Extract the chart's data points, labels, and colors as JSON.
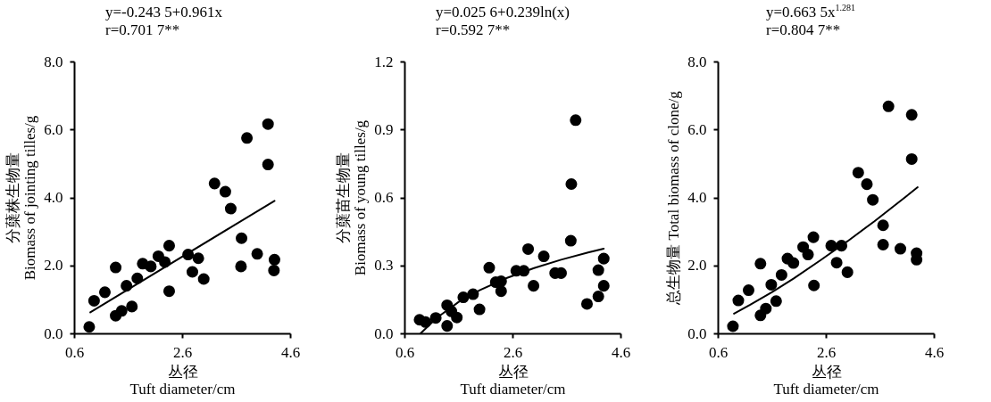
{
  "chart_data": [
    {
      "type": "scatter",
      "title": "y=-0.243 5+0.961x",
      "subtitle": "r=0.701 7**",
      "xlabel": "丛径\nTuft diameter/cm",
      "ylabel": "分蘖株生物量\nBiomass of jointing tilles/g",
      "xlim": [
        0.6,
        4.6
      ],
      "xticks": [
        0.6,
        2.6,
        4.6
      ],
      "ylim": [
        0,
        8
      ],
      "yticks": [
        {
          "value": 0,
          "label": "0.0"
        },
        {
          "value": 2,
          "label": "2.0"
        },
        {
          "value": 4,
          "label": "4.0"
        },
        {
          "value": 6,
          "label": "6.0"
        },
        {
          "value": 8,
          "label": "8.0"
        }
      ],
      "series": [
        {
          "type": "scatter",
          "marker": "circle",
          "color": "#000000",
          "x": [
            0.88,
            0.97,
            1.17,
            1.37,
            1.37,
            1.48,
            1.67,
            1.57,
            1.77,
            1.87,
            2.02,
            2.16,
            2.28,
            2.36,
            2.36,
            2.71,
            2.9,
            2.79,
            3.0,
            3.2,
            3.4,
            3.5,
            3.7,
            3.69,
            3.8,
            3.99,
            4.19,
            4.19,
            4.31,
            4.3
          ],
          "values": [
            0.19,
            0.96,
            1.21,
            1.94,
            0.52,
            0.66,
            0.79,
            1.4,
            1.62,
            2.05,
            1.97,
            2.27,
            2.1,
            2.58,
            1.24,
            2.32,
            2.21,
            1.81,
            1.6,
            4.41,
            4.17,
            3.67,
            2.8,
            1.97,
            5.75,
            2.34,
            6.16,
            4.97,
            2.17,
            1.85
          ]
        },
        {
          "type": "line",
          "color": "#000000",
          "x": [
            0.9,
            4.31
          ],
          "values": [
            0.62,
            3.9
          ]
        }
      ]
    },
    {
      "type": "scatter",
      "title": "y=0.025 6+0.239ln(x)",
      "subtitle": "r=0.592 7**",
      "xlabel": "丛径\nTuft diameter/cm",
      "ylabel": "分蘖苗生物量\nBiomass of young tilles/g",
      "xlim": [
        0.6,
        4.6
      ],
      "xticks": [
        0.6,
        2.6,
        4.6
      ],
      "ylim": [
        0,
        1.2
      ],
      "yticks": [
        {
          "value": 0,
          "label": "0.0"
        },
        0.3,
        0.6,
        0.9,
        1.2
      ],
      "series": [
        {
          "type": "scatter",
          "marker": "circle",
          "color": "#000000",
          "x": [
            0.88,
            0.99,
            1.18,
            1.39,
            1.39,
            1.47,
            1.57,
            1.69,
            1.87,
            1.99,
            2.17,
            2.29,
            2.39,
            2.39,
            2.67,
            2.81,
            2.89,
            2.99,
            3.18,
            3.39,
            3.5,
            3.68,
            3.69,
            3.77,
            3.98,
            4.19,
            4.19,
            4.29,
            4.29
          ],
          "values": [
            0.06,
            0.05,
            0.068,
            0.124,
            0.033,
            0.097,
            0.07,
            0.159,
            0.173,
            0.106,
            0.29,
            0.226,
            0.23,
            0.186,
            0.276,
            0.276,
            0.372,
            0.21,
            0.34,
            0.266,
            0.266,
            0.409,
            0.659,
            0.941,
            0.13,
            0.279,
            0.163,
            0.33,
            0.21
          ]
        },
        {
          "type": "line",
          "color": "#000000",
          "x": [
            0.9,
            1.2,
            1.6,
            2.0,
            2.5,
            3.0,
            3.5,
            4.0,
            4.29
          ],
          "values": [
            0.0,
            0.069,
            0.138,
            0.191,
            0.245,
            0.288,
            0.325,
            0.357,
            0.374
          ]
        }
      ]
    },
    {
      "type": "scatter",
      "title": "y=0.663 5x$^{1.281}$",
      "subtitle": "r=0.804 7**",
      "xlabel": "丛径\nTuft diameter/cm",
      "ylabel": "总生物量 Total biomass of clone/g",
      "xlim": [
        0.6,
        4.6
      ],
      "xticks": [
        0.6,
        2.6,
        4.6
      ],
      "ylim": [
        0,
        8
      ],
      "yticks": [
        {
          "value": 0,
          "label": "0.0"
        },
        {
          "value": 2,
          "label": "2.0"
        },
        {
          "value": 4,
          "label": "4.0"
        },
        {
          "value": 6,
          "label": "6.0"
        },
        {
          "value": 8,
          "label": "8.0"
        }
      ],
      "series": [
        {
          "type": "scatter",
          "marker": "circle",
          "color": "#000000",
          "x": [
            0.88,
            0.98,
            1.17,
            1.39,
            1.39,
            1.49,
            1.59,
            1.68,
            1.78,
            1.89,
            2.0,
            2.18,
            2.27,
            2.37,
            2.38,
            2.7,
            2.8,
            2.89,
            3.0,
            3.2,
            3.36,
            3.47,
            3.66,
            3.66,
            3.76,
            3.98,
            4.19,
            4.19,
            4.28,
            4.28
          ],
          "values": [
            0.21,
            0.97,
            1.27,
            2.05,
            0.53,
            0.73,
            1.43,
            0.95,
            1.72,
            2.2,
            2.07,
            2.54,
            2.32,
            2.83,
            1.41,
            2.58,
            2.08,
            2.58,
            1.8,
            4.73,
            4.39,
            3.93,
            3.18,
            2.61,
            6.68,
            2.49,
            6.43,
            5.13,
            2.36,
            2.17
          ]
        },
        {
          "type": "line",
          "color": "#000000",
          "x": [
            0.9,
            1.2,
            1.6,
            2.0,
            2.5,
            3.0,
            3.5,
            4.0,
            4.3
          ],
          "values": [
            0.58,
            0.84,
            1.21,
            1.61,
            2.15,
            2.71,
            3.3,
            3.92,
            4.3
          ]
        }
      ]
    }
  ]
}
